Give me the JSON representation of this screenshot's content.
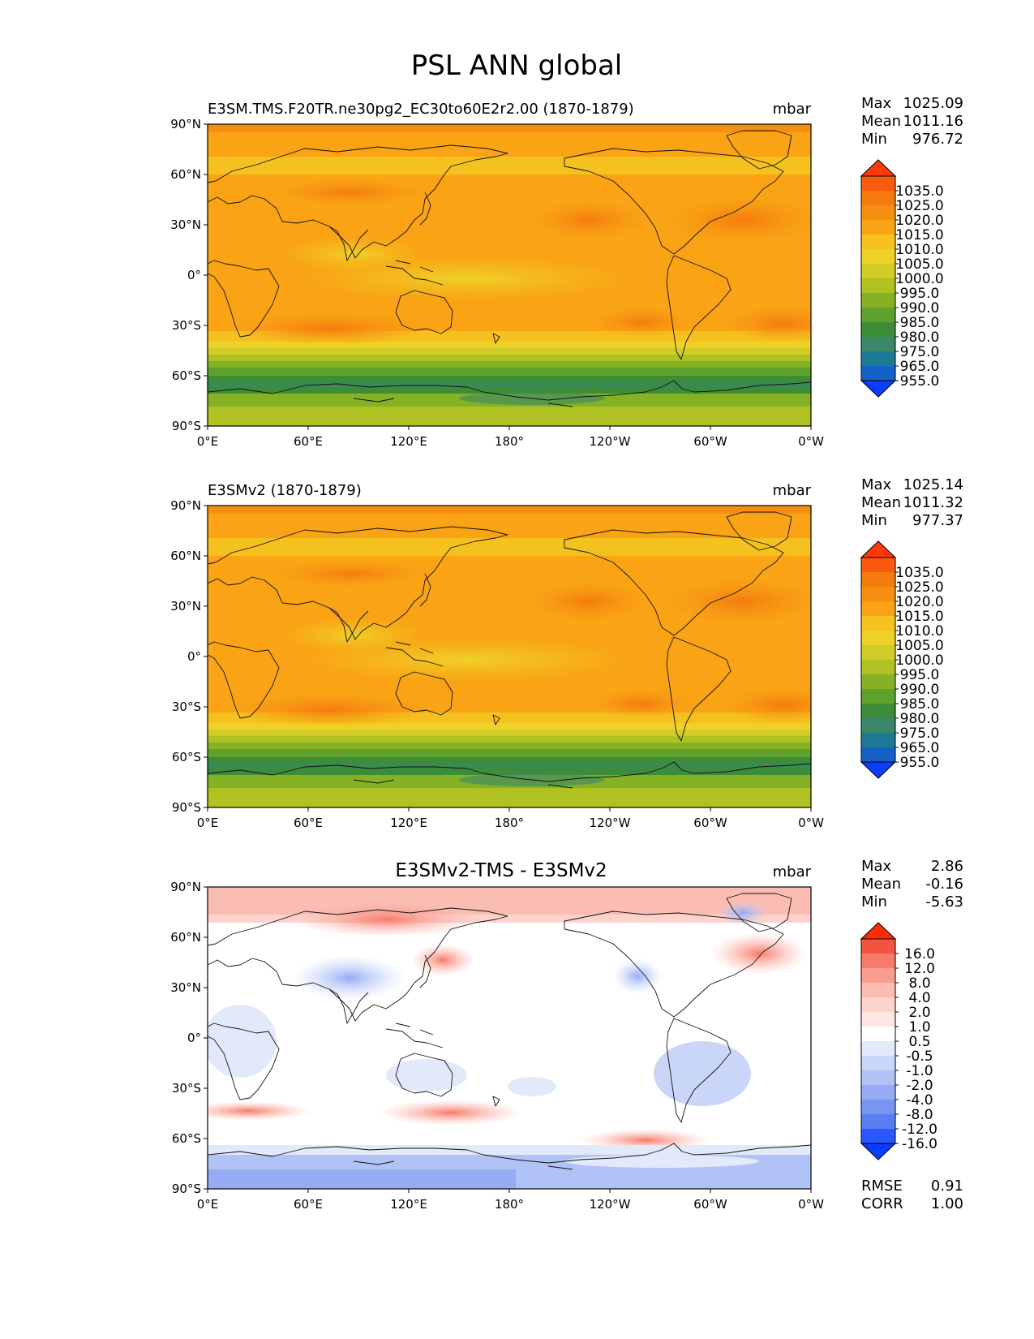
{
  "figure_title": "PSL ANN global",
  "units": "mbar",
  "lon_ticks": [
    "0°E",
    "60°E",
    "120°E",
    "180°",
    "120°W",
    "60°W",
    "0°W"
  ],
  "lat_ticks": [
    "90°N",
    "60°N",
    "30°N",
    "0°",
    "30°S",
    "60°S",
    "90°S"
  ],
  "panels": [
    {
      "title": "E3SM.TMS.F20TR.ne30pg2_EC30to60E2r2.00 (1870-1879)",
      "title_align": "left",
      "units": "mbar",
      "stats": [
        {
          "label": "Max",
          "value": "1025.09"
        },
        {
          "label": "Mean",
          "value": "1011.16"
        },
        {
          "label": "Min",
          "value": "976.72"
        }
      ],
      "colorbar_labels": [
        "1035.0",
        "1025.0",
        "1020.0",
        "1015.0",
        "1010.0",
        "1005.0",
        "1000.0",
        "995.0",
        "990.0",
        "985.0",
        "980.0",
        "975.0",
        "965.0",
        "955.0"
      ],
      "colorbar_colors": [
        "#fe3a0a",
        "#f95a0c",
        "#f57b0e",
        "#f68f10",
        "#f9a315",
        "#f5c11e",
        "#efd128",
        "#d2cc28",
        "#b0c122",
        "#85b224",
        "#5ea12c",
        "#3d8d38",
        "#3a8769",
        "#1d7a94",
        "#1462c8",
        "#0a3dff"
      ]
    },
    {
      "title": "E3SMv2 (1870-1879)",
      "title_align": "left",
      "units": "mbar",
      "stats": [
        {
          "label": "Max",
          "value": "1025.14"
        },
        {
          "label": "Mean",
          "value": "1011.32"
        },
        {
          "label": "Min",
          "value": "977.37"
        }
      ],
      "colorbar_labels": [
        "1035.0",
        "1025.0",
        "1020.0",
        "1015.0",
        "1010.0",
        "1005.0",
        "1000.0",
        "995.0",
        "990.0",
        "985.0",
        "980.0",
        "975.0",
        "965.0",
        "955.0"
      ],
      "colorbar_colors": [
        "#fe3a0a",
        "#f95a0c",
        "#f57b0e",
        "#f68f10",
        "#f9a315",
        "#f5c11e",
        "#efd128",
        "#d2cc28",
        "#b0c122",
        "#85b224",
        "#5ea12c",
        "#3d8d38",
        "#3a8769",
        "#1d7a94",
        "#1462c8",
        "#0a3dff"
      ]
    },
    {
      "title": "E3SMv2-TMS - E3SMv2",
      "title_align": "center",
      "units": "mbar",
      "stats": [
        {
          "label": "Max",
          "value": "2.86"
        },
        {
          "label": "Mean",
          "value": "-0.16"
        },
        {
          "label": "Min",
          "value": "-5.63"
        }
      ],
      "colorbar_labels": [
        "16.0",
        "12.0",
        "8.0",
        "4.0",
        "2.0",
        "1.0",
        "0.5",
        "-0.5",
        "-1.0",
        "-2.0",
        "-4.0",
        "-8.0",
        "-12.0",
        "-16.0"
      ],
      "colorbar_colors": [
        "#ff2b00",
        "#f3543f",
        "#f77a6a",
        "#fa9d91",
        "#fbbcb2",
        "#fdd3cc",
        "#fde7e3",
        "#ffffff",
        "#e2e9fb",
        "#c9d6f8",
        "#b1c3f6",
        "#95acf4",
        "#7895f2",
        "#5a7ef1",
        "#2a57ff",
        "#0a3dff"
      ],
      "footer_stats": [
        {
          "label": "RMSE",
          "value": "0.91"
        },
        {
          "label": "CORR",
          "value": "1.00"
        }
      ]
    }
  ]
}
